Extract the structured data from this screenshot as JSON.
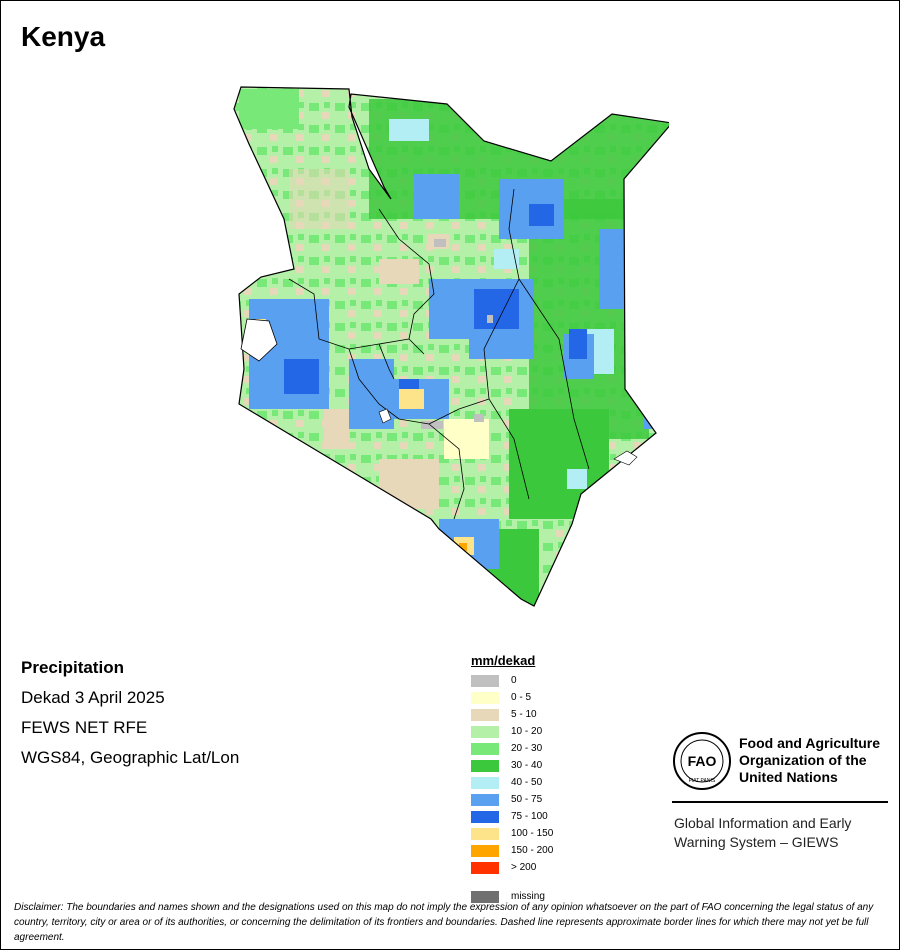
{
  "title": "Kenya",
  "info": {
    "variable": "Precipitation",
    "period": "Dekad 3 April 2025",
    "source": "FEWS NET RFE",
    "projection": "WGS84, Geographic Lat/Lon"
  },
  "legend": {
    "title": "mm/dekad",
    "items": [
      {
        "label": "0",
        "color": "#c0c0c0"
      },
      {
        "label": "0 - 5",
        "color": "#ffffc8"
      },
      {
        "label": "5 - 10",
        "color": "#e6d8b8"
      },
      {
        "label": "10 - 20",
        "color": "#b4f0a8"
      },
      {
        "label": "20 - 30",
        "color": "#78e878"
      },
      {
        "label": "30 - 40",
        "color": "#3cc83c"
      },
      {
        "label": "40 - 50",
        "color": "#b4eef5"
      },
      {
        "label": "50 - 75",
        "color": "#5aa0f0"
      },
      {
        "label": "75 - 100",
        "color": "#2366e6"
      },
      {
        "label": "100 - 150",
        "color": "#fde38a"
      },
      {
        "label": "150 - 200",
        "color": "#ffa500"
      },
      {
        "label": "> 200",
        "color": "#ff3200"
      }
    ],
    "missing": {
      "label": "missing",
      "color": "#707070"
    }
  },
  "fao": {
    "logo_text": "FAO",
    "logo_motto": "FIAT PANIS",
    "name_line1": "Food and Agriculture",
    "name_line2": "Organization of the",
    "name_line3": "United Nations"
  },
  "giews": {
    "line1": "Global Information and Early",
    "line2": "Warning System – GIEWS"
  },
  "disclaimer": {
    "label": "Disclaimer:",
    "text": "The boundaries and names shown and the designations used on this map do not imply the expression of any opinion whatsoever on the part of FAO concerning the legal status of any country, territory, city or area or of its authorities, or concerning the delimitation of its frontiers and boundaries. Dashed line represents approximate border lines for which there may not yet be full agreement."
  }
}
